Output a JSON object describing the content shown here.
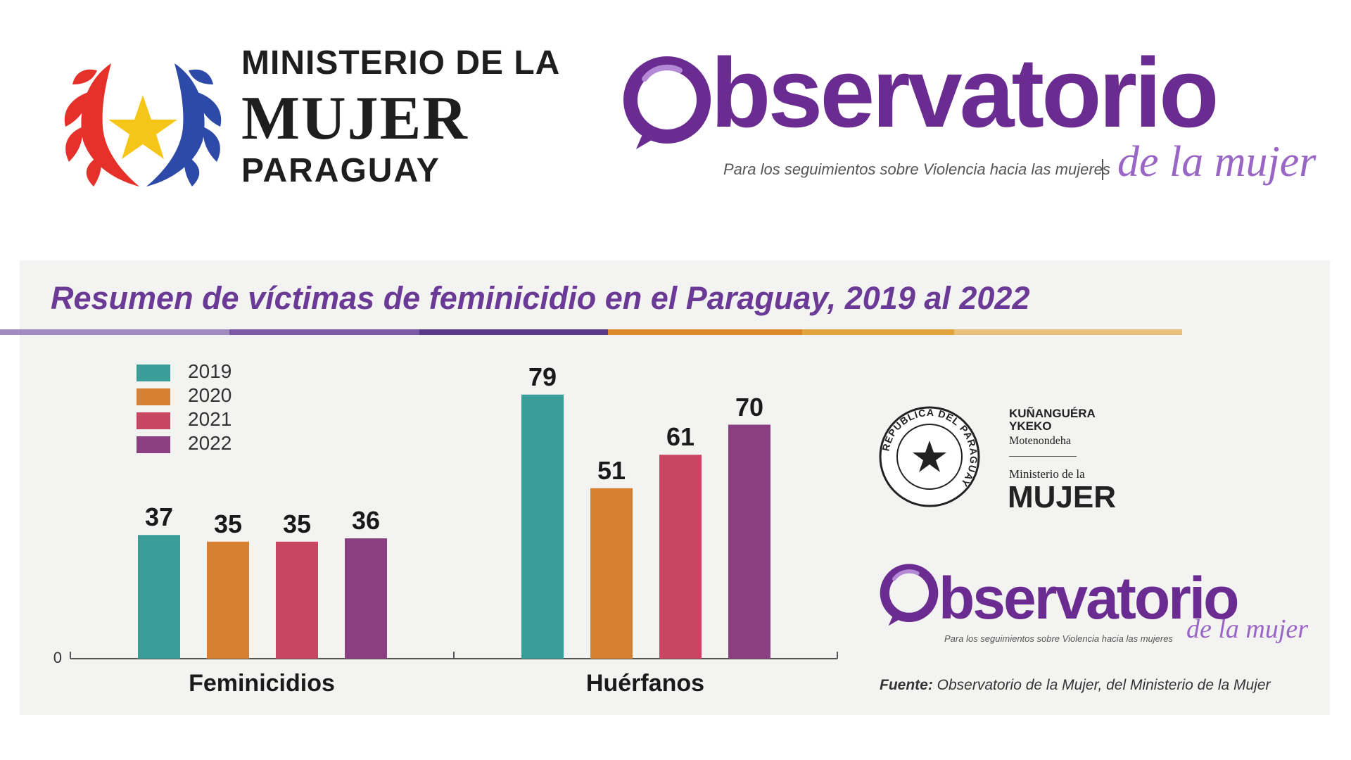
{
  "header": {
    "ministry_line1": "MINISTERIO DE LA",
    "ministry_line2": "MUJER",
    "ministry_line3": "PARAGUAY",
    "observatorio_word": "bservatorio",
    "observatorio_tagline": "Para los seguimientos sobre Violencia hacia las mujeres",
    "observatorio_script": "de la mujer"
  },
  "colors": {
    "accent_purple": "#6a2c91",
    "y2019": "#3a9e98",
    "y2020": "#d58033",
    "y2021": "#c94662",
    "y2022": "#8a3f80"
  },
  "chart_data": {
    "type": "bar",
    "title": "Resumen de víctimas de feminicidio en el Paraguay, 2019 al 2022",
    "categories": [
      "Feminicidios",
      "Huérfanos"
    ],
    "series": [
      {
        "name": "2019",
        "values": [
          37,
          79
        ]
      },
      {
        "name": "2020",
        "values": [
          35,
          51
        ]
      },
      {
        "name": "2021",
        "values": [
          35,
          61
        ]
      },
      {
        "name": "2022",
        "values": [
          36,
          70
        ]
      }
    ],
    "y_tick": "0",
    "ylim": [
      0,
      80
    ],
    "legend_position": "top-left",
    "grid": false
  },
  "right_logos": {
    "seal_text": "REPÚBLICA DEL PARAGUAY",
    "kuna_line1": "KUÑANGUÉRA",
    "kuna_line2": "YKEKO",
    "motenondeha": "Motenondeha",
    "ministerio_dela": "Ministerio de la",
    "mujer": "MUJER",
    "obs_word": "bservatorio",
    "obs_tagline": "Para los seguimientos sobre Violencia hacia las mujeres",
    "obs_script": "de la mujer"
  },
  "source": {
    "label": "Fuente:",
    "text": " Observatorio de la Mujer, del Ministerio de la Mujer"
  }
}
